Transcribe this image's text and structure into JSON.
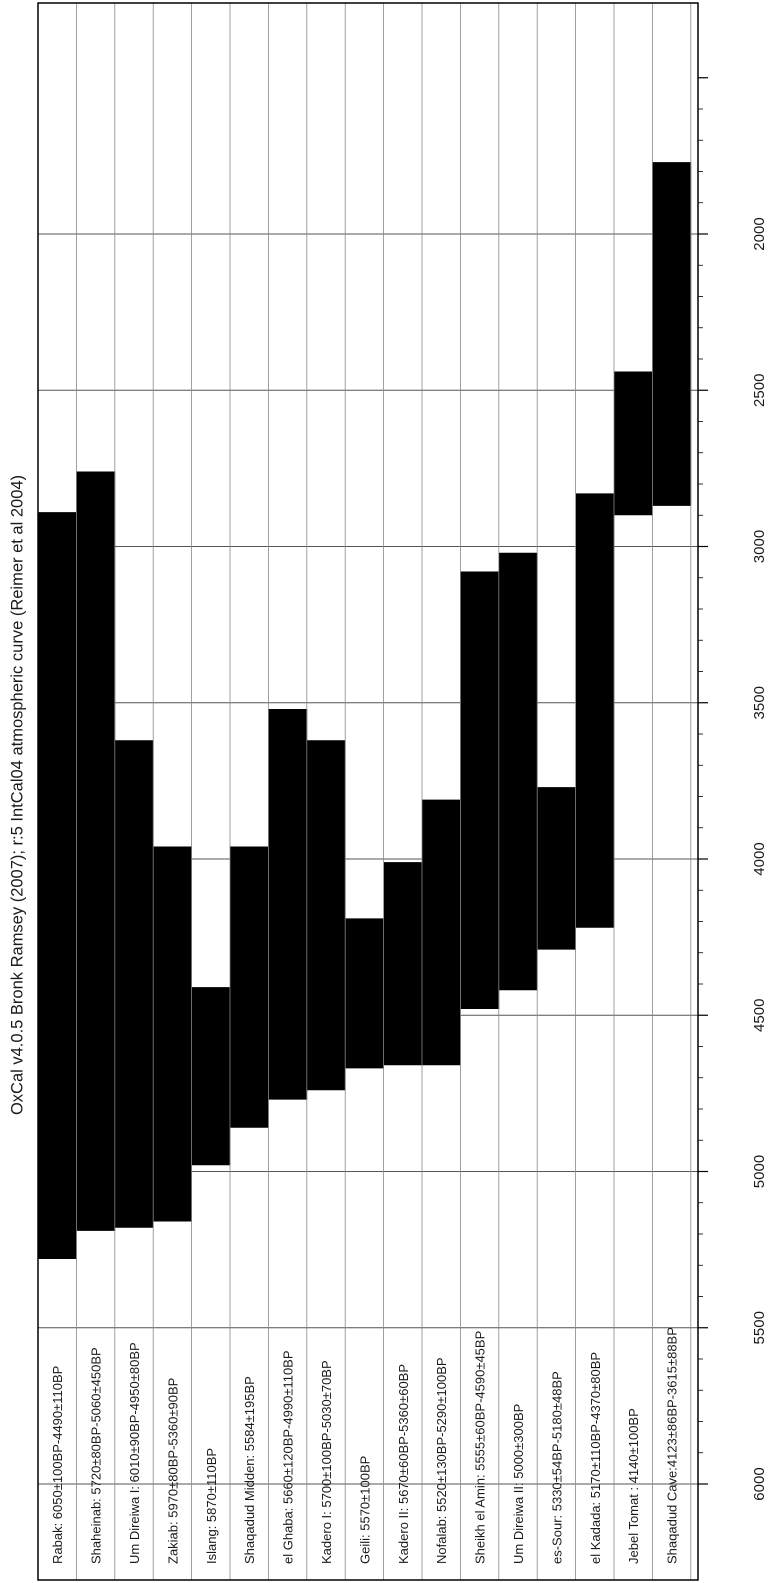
{
  "chart_data": {
    "type": "bar",
    "orientation": "rotated",
    "title": "OxCal v4.0.5 Bronk Ramsey (2007); r:5 IntCal04 atmospheric curve (Reimer et al 2004)",
    "xlabel": "",
    "ylabel": "",
    "axis": {
      "range": [
        6000,
        1500
      ],
      "ticks": [
        6000,
        5500,
        5000,
        4500,
        4000,
        3500,
        3000,
        2500,
        2000
      ],
      "tick_labels": [
        "6000",
        "5500",
        "5000",
        "4500",
        "4000",
        "3500",
        "3000",
        "2500",
        "2000"
      ],
      "minor_step": 100,
      "grid": true
    },
    "rows": [
      {
        "label": "Rabak: 6050±100BP-4490±110BP",
        "start": 5280,
        "end": 2890
      },
      {
        "label": "Shaheinab: 5720±80BP-5060±450BP",
        "start": 5190,
        "end": 2760
      },
      {
        "label": "Um Direiwa I: 6010±90BP-4950±80BP",
        "start": 5180,
        "end": 3620
      },
      {
        "label": "Zakiab: 5970±80BP-5360±90BP",
        "start": 5160,
        "end": 3960
      },
      {
        "label": "Islang: 5870±110BP",
        "start": 4980,
        "end": 4410
      },
      {
        "label": "Shaqadud Midden: 5584±195BP",
        "start": 4860,
        "end": 3960
      },
      {
        "label": "el Ghaba: 5660±120BP-4990±110BP",
        "start": 4770,
        "end": 3520
      },
      {
        "label": "Kadero I: 5700±100BP-5030±70BP",
        "start": 4740,
        "end": 3620
      },
      {
        "label": "Geili: 5570±100BP",
        "start": 4670,
        "end": 4190
      },
      {
        "label": "Kadero II: 5670±60BP-5360±60BP",
        "start": 4660,
        "end": 4010
      },
      {
        "label": "Nofalab: 5520±130BP-5290±100BP",
        "start": 4660,
        "end": 3810
      },
      {
        "label": "Sheikh el Amin: 5555±60BP-4590±45BP",
        "start": 4480,
        "end": 3080
      },
      {
        "label": "Um Direiwa II: 5000±300BP",
        "start": 4420,
        "end": 3020
      },
      {
        "label": "es-Sour: 5330±54BP-5180±48BP",
        "start": 4290,
        "end": 3770
      },
      {
        "label": "el Kadada: 5170±110BP-4370±80BP",
        "start": 4220,
        "end": 2830
      },
      {
        "label": "Jebel Tomat   : 4140±100BP",
        "start": 2900,
        "end": 2440
      },
      {
        "label": "Shaqadud Cave:4123±86BP-3615±88BP",
        "start": 2870,
        "end": 1770
      }
    ]
  }
}
